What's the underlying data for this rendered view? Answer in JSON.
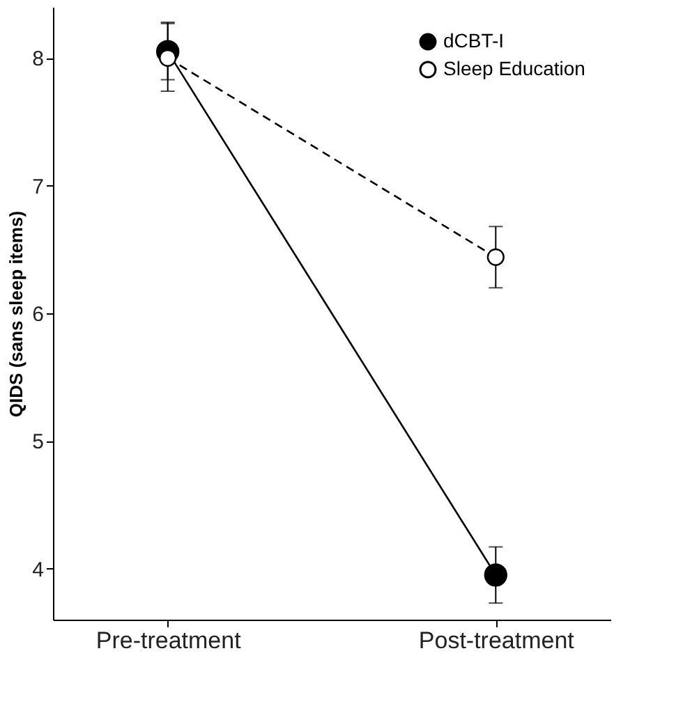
{
  "chart_data": {
    "type": "line",
    "ylabel": "QIDS (sans sleep items)",
    "categories": [
      "Pre-treatment",
      "Post-treatment"
    ],
    "ylim": [
      3.6,
      8.4
    ],
    "yticks": [
      {
        "value": 4,
        "label": "4"
      },
      {
        "value": 5,
        "label": "5"
      },
      {
        "value": 6,
        "label": "6"
      },
      {
        "value": 7,
        "label": "7"
      },
      {
        "value": 8,
        "label": "8"
      }
    ],
    "grid": false,
    "legend": "top right",
    "marker": "circle",
    "series": [
      {
        "name": "dCBT-I",
        "color": "#000000",
        "line_style": "solid",
        "values": [
          8.05,
          3.95
        ],
        "errors": [
          [
            7.83,
            8.28
          ],
          [
            3.73,
            4.17
          ]
        ]
      },
      {
        "name": "Sleep Education",
        "color": "#ffffff",
        "line_style": "dashed",
        "values": [
          8.0,
          6.44
        ],
        "errors": [
          [
            7.74,
            8.27
          ],
          [
            6.2,
            6.68
          ]
        ]
      }
    ]
  }
}
